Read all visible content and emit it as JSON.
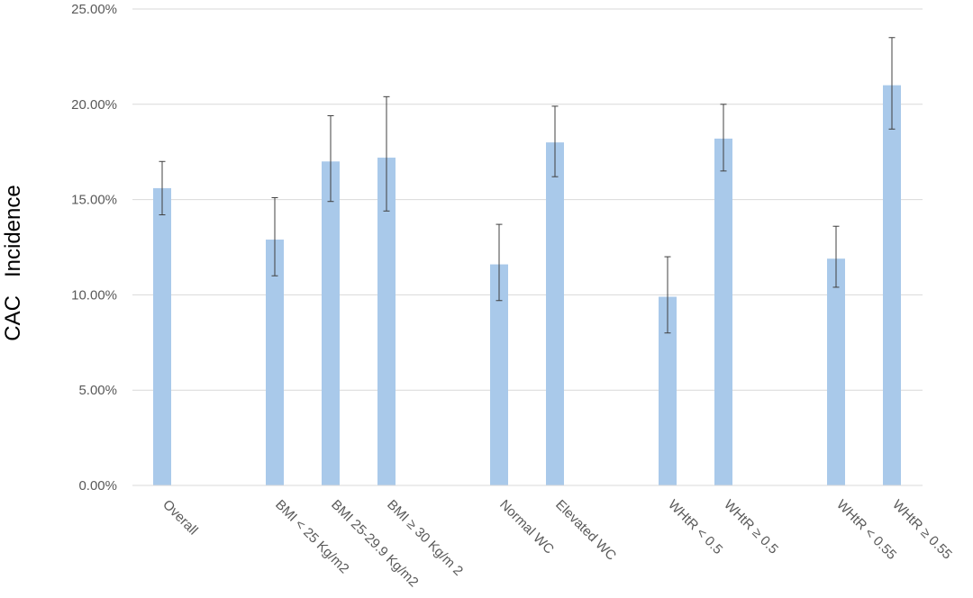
{
  "chart_data": {
    "type": "bar",
    "title": "",
    "xlabel": "",
    "ylabel": "CAC   Incidence",
    "ylim": [
      0,
      25
    ],
    "yticks": [
      0,
      5,
      10,
      15,
      20,
      25
    ],
    "ytick_labels": [
      "0.00%",
      "5.00%",
      "10.00%",
      "15.00%",
      "20.00%",
      "25.00%"
    ],
    "grid": "horizontal",
    "legend": "none",
    "bar_color": "#a9c9ea",
    "error_bar_color": "#404040",
    "groups": [
      {
        "categories": [
          "Overall"
        ]
      },
      {
        "categories": [
          "BMI < 25 Kg/m2",
          "BMI 25-29.9 Kg/m2",
          "BMI ≥ 30 Kg/m 2"
        ]
      },
      {
        "categories": [
          "Normal WC",
          "Elevated WC"
        ]
      },
      {
        "categories": [
          "WHtR < 0.5",
          "WHtR ≥ 0.5"
        ]
      },
      {
        "categories": [
          "WHtR < 0.55",
          "WHtR ≥ 0.55"
        ]
      }
    ],
    "categories": [
      "Overall",
      "BMI < 25 Kg/m2",
      "BMI 25-29.9 Kg/m2",
      "BMI ≥ 30 Kg/m 2",
      "Normal WC",
      "Elevated WC",
      "WHtR < 0.5",
      "WHtR ≥ 0.5",
      "WHtR < 0.55",
      "WHtR ≥ 0.55"
    ],
    "values": [
      15.6,
      12.9,
      17.0,
      17.2,
      11.6,
      18.0,
      9.9,
      18.2,
      11.9,
      21.0
    ],
    "error_low": [
      14.2,
      11.0,
      14.9,
      14.4,
      9.7,
      16.2,
      8.0,
      16.5,
      10.4,
      18.7
    ],
    "error_high": [
      17.0,
      15.1,
      19.4,
      20.4,
      13.7,
      19.9,
      12.0,
      20.0,
      13.6,
      23.5
    ]
  }
}
